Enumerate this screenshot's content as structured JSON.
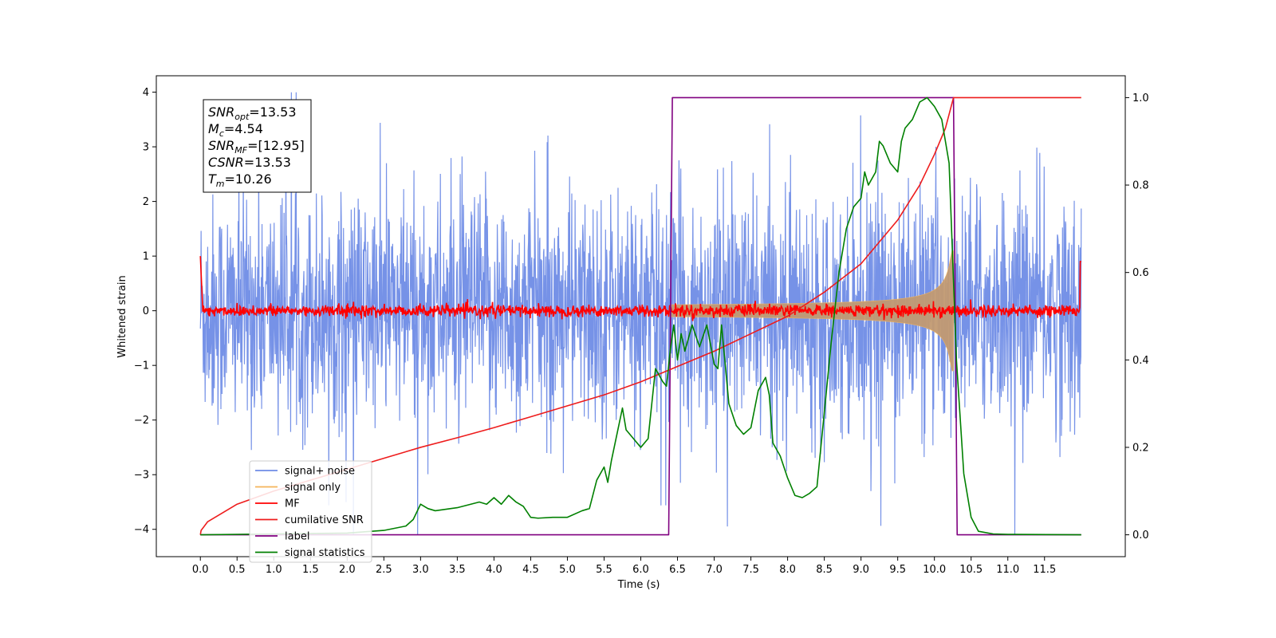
{
  "chart_data": {
    "type": "line",
    "xlabel": "Time (s)",
    "ylabel": "Whitened strain",
    "xlim": [
      -0.6,
      12.6
    ],
    "ylim": [
      -4.5,
      4.3
    ],
    "y2lim": [
      -0.05,
      1.05
    ],
    "xticks": [
      "0.0",
      "0.5",
      "1.0",
      "1.5",
      "2.0",
      "2.5",
      "3.0",
      "3.5",
      "4.0",
      "4.5",
      "5.0",
      "5.5",
      "6.0",
      "6.5",
      "7.0",
      "7.5",
      "8.0",
      "8.5",
      "9.0",
      "9.5",
      "10.0",
      "10.5",
      "11.0",
      "11.5"
    ],
    "yticks": [
      "4",
      "3",
      "2",
      "1",
      "0",
      "−1",
      "−2",
      "−3",
      "−4"
    ],
    "y2ticks": [
      "1.0",
      "0.8",
      "0.6",
      "0.4",
      "0.2",
      "0.0"
    ],
    "annotation": {
      "lines": [
        {
          "sym": "SNR",
          "sub": "opt",
          "val": "=13.53"
        },
        {
          "sym": "M",
          "sub": "c",
          "val": "=4.54"
        },
        {
          "sym": "SNR",
          "sub": "MF",
          "val": "=[12.95]"
        },
        {
          "sym": "CSNR",
          "sub": "",
          "val": "=13.53"
        },
        {
          "sym": "T",
          "sub": "m",
          "val": "=10.26"
        }
      ]
    },
    "legend": {
      "position": "lower-left",
      "entries": [
        "signal+ noise",
        "signal only",
        "MF",
        "cumilative SNR",
        "label",
        "signal statistics"
      ]
    },
    "colors": {
      "signal_noise": "#6f8ce6",
      "signal_only": "#f5b45a",
      "mf": "#ff0000",
      "cumulative_snr": "#ee1c1c",
      "label": "#800080",
      "signal_statistics": "#008000"
    },
    "series": [
      {
        "name": "label",
        "axis": "right",
        "x": [
          0.0,
          6.38,
          6.43,
          10.26,
          10.31,
          12.0
        ],
        "values": [
          0.0,
          0.0,
          1.0,
          1.0,
          0.0,
          0.0
        ]
      },
      {
        "name": "cumilative SNR",
        "axis": "right",
        "x": [
          0.0,
          0.01,
          0.1,
          0.5,
          1.0,
          1.5,
          2.0,
          2.5,
          3.0,
          3.5,
          4.0,
          4.5,
          5.0,
          5.5,
          6.0,
          6.5,
          7.0,
          7.5,
          8.0,
          8.5,
          9.0,
          9.5,
          9.8,
          10.0,
          10.15,
          10.26,
          10.3,
          12.0
        ],
        "values": [
          0.0,
          0.01,
          0.03,
          0.07,
          0.1,
          0.125,
          0.15,
          0.175,
          0.2,
          0.222,
          0.245,
          0.27,
          0.295,
          0.32,
          0.35,
          0.385,
          0.42,
          0.46,
          0.5,
          0.555,
          0.62,
          0.72,
          0.8,
          0.87,
          0.93,
          1.0,
          1.0,
          1.0
        ]
      },
      {
        "name": "signal statistics",
        "axis": "right",
        "x": [
          0.0,
          1.0,
          2.0,
          2.5,
          2.8,
          2.9,
          3.0,
          3.1,
          3.2,
          3.5,
          3.8,
          3.9,
          4.0,
          4.1,
          4.2,
          4.3,
          4.4,
          4.5,
          4.6,
          4.8,
          5.0,
          5.2,
          5.3,
          5.4,
          5.5,
          5.55,
          5.6,
          5.7,
          5.75,
          5.8,
          5.9,
          6.0,
          6.1,
          6.2,
          6.3,
          6.35,
          6.4,
          6.45,
          6.5,
          6.55,
          6.6,
          6.7,
          6.8,
          6.9,
          7.0,
          7.05,
          7.1,
          7.2,
          7.3,
          7.4,
          7.5,
          7.6,
          7.7,
          7.75,
          7.8,
          7.9,
          8.0,
          8.1,
          8.2,
          8.3,
          8.4,
          8.5,
          8.6,
          8.7,
          8.8,
          8.9,
          9.0,
          9.05,
          9.1,
          9.2,
          9.25,
          9.3,
          9.4,
          9.5,
          9.55,
          9.6,
          9.7,
          9.8,
          9.9,
          10.0,
          10.1,
          10.2,
          10.3,
          10.4,
          10.5,
          10.6,
          10.8,
          11.0,
          12.0
        ],
        "values": [
          0.0,
          0.002,
          0.004,
          0.01,
          0.02,
          0.035,
          0.07,
          0.06,
          0.055,
          0.062,
          0.075,
          0.07,
          0.085,
          0.07,
          0.09,
          0.075,
          0.065,
          0.04,
          0.038,
          0.04,
          0.04,
          0.055,
          0.06,
          0.125,
          0.155,
          0.12,
          0.17,
          0.25,
          0.29,
          0.24,
          0.22,
          0.2,
          0.22,
          0.38,
          0.35,
          0.34,
          0.42,
          0.48,
          0.4,
          0.46,
          0.42,
          0.48,
          0.43,
          0.48,
          0.39,
          0.38,
          0.48,
          0.3,
          0.25,
          0.23,
          0.245,
          0.33,
          0.36,
          0.32,
          0.21,
          0.18,
          0.13,
          0.09,
          0.085,
          0.095,
          0.11,
          0.28,
          0.45,
          0.6,
          0.7,
          0.75,
          0.77,
          0.83,
          0.8,
          0.83,
          0.9,
          0.89,
          0.85,
          0.83,
          0.9,
          0.93,
          0.95,
          0.99,
          1.0,
          0.98,
          0.95,
          0.85,
          0.4,
          0.14,
          0.04,
          0.008,
          0.002,
          0.001,
          0.0
        ]
      }
    ]
  }
}
